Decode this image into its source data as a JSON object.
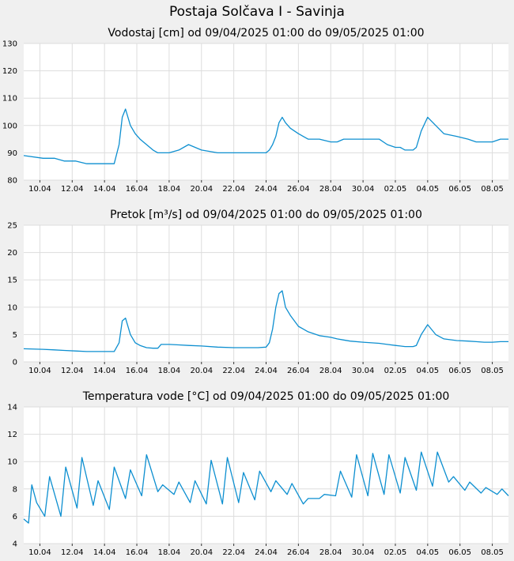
{
  "title": "Postaja Solčava I - Savinja",
  "colors": {
    "background": "#f0f0f0",
    "plot_area": "#ffffff",
    "grid": "#dddddd",
    "line": "#0d8fd0"
  },
  "chart_data": [
    {
      "type": "line",
      "title": "Vodostaj [cm] od 09/04/2025 01:00 do 09/05/2025 01:00",
      "xlabel": "",
      "ylabel": "",
      "ylim": [
        80,
        130
      ],
      "yticks": [
        "80",
        "90",
        "100",
        "110",
        "120",
        "130"
      ],
      "xtick_labels": [
        "10.04",
        "12.04",
        "14.04",
        "16.04",
        "18.04",
        "20.04",
        "22.04",
        "24.04",
        "26.04",
        "28.04",
        "30.04",
        "02.05",
        "04.05",
        "06.05",
        "08.05"
      ],
      "grid": true,
      "x": [
        0,
        1.2,
        1.9,
        2.5,
        3.2,
        3.9,
        4.6,
        5.2,
        5.6,
        5.9,
        6.1,
        6.3,
        6.6,
        6.9,
        7.2,
        7.6,
        8.0,
        8.3,
        8.5,
        8.6,
        9.0,
        9.6,
        10.2,
        11.0,
        12.0,
        13.0,
        14.0,
        14.5,
        15.0,
        15.2,
        15.4,
        15.6,
        15.8,
        16.0,
        16.2,
        16.5,
        17.0,
        17.6,
        18.3,
        19.0,
        19.4,
        19.8,
        20.2,
        21.0,
        22.0,
        22.5,
        23.0,
        23.3,
        23.6,
        23.9,
        24.1,
        24.3,
        24.6,
        25.0,
        25.5,
        26.0,
        26.8,
        27.5,
        28.0,
        28.5,
        29.0,
        29.5,
        30.0
      ],
      "series": [
        {
          "values": [
            89,
            88,
            88,
            87,
            87,
            86,
            86,
            86,
            86,
            93,
            103,
            106,
            100,
            97,
            95,
            93,
            91,
            90,
            90,
            90,
            90,
            91,
            93,
            91,
            90,
            90,
            90,
            90,
            90,
            91,
            93,
            96,
            101,
            103,
            101,
            99,
            97,
            95,
            95,
            94,
            94,
            95,
            95,
            95,
            95,
            93,
            92,
            92,
            91,
            91,
            91,
            92,
            98,
            103,
            100,
            97,
            96,
            95,
            94,
            94,
            94,
            95,
            95
          ]
        }
      ]
    },
    {
      "type": "line",
      "title": "Pretok [m³/s] od 09/04/2025 01:00 do 09/05/2025 01:00",
      "xlabel": "",
      "ylabel": "",
      "ylim": [
        0,
        25
      ],
      "yticks": [
        "0",
        "5",
        "10",
        "15",
        "20",
        "25"
      ],
      "xtick_labels": [
        "10.04",
        "12.04",
        "14.04",
        "16.04",
        "18.04",
        "20.04",
        "22.04",
        "24.04",
        "26.04",
        "28.04",
        "30.04",
        "02.05",
        "04.05",
        "06.05",
        "08.05"
      ],
      "grid": true,
      "x": [
        0,
        1.2,
        1.9,
        2.5,
        3.2,
        3.9,
        4.6,
        5.2,
        5.6,
        5.9,
        6.1,
        6.3,
        6.6,
        6.9,
        7.2,
        7.6,
        8.0,
        8.3,
        8.5,
        8.6,
        9.0,
        9.6,
        10.2,
        11.0,
        12.0,
        13.0,
        14.0,
        14.5,
        15.0,
        15.2,
        15.4,
        15.6,
        15.8,
        16.0,
        16.2,
        16.5,
        17.0,
        17.6,
        18.3,
        19.0,
        19.4,
        19.8,
        20.2,
        21.0,
        22.0,
        22.5,
        23.0,
        23.3,
        23.6,
        23.9,
        24.1,
        24.3,
        24.6,
        25.0,
        25.5,
        26.0,
        26.8,
        27.5,
        28.0,
        28.5,
        29.0,
        29.5,
        30.0
      ],
      "series": [
        {
          "values": [
            2.4,
            2.3,
            2.2,
            2.1,
            2.0,
            1.9,
            1.9,
            1.9,
            1.9,
            3.5,
            7.5,
            8.0,
            5.0,
            3.5,
            3.0,
            2.6,
            2.5,
            2.5,
            3.2,
            3.2,
            3.2,
            3.1,
            3.0,
            2.9,
            2.7,
            2.6,
            2.6,
            2.6,
            2.7,
            3.5,
            6.0,
            10.0,
            12.5,
            13.0,
            10.0,
            8.5,
            6.5,
            5.5,
            4.8,
            4.5,
            4.2,
            4.0,
            3.8,
            3.6,
            3.4,
            3.2,
            3.0,
            2.9,
            2.8,
            2.8,
            2.8,
            3.0,
            5.0,
            6.8,
            5.0,
            4.2,
            3.9,
            3.8,
            3.7,
            3.6,
            3.6,
            3.7,
            3.7
          ]
        }
      ]
    },
    {
      "type": "line",
      "title": "Temperatura vode [°C] od 09/04/2025 01:00 do 09/05/2025 01:00",
      "xlabel": "",
      "ylabel": "",
      "ylim": [
        4,
        14
      ],
      "yticks": [
        "4",
        "6",
        "8",
        "10",
        "12",
        "14"
      ],
      "xtick_labels": [
        "10.04",
        "12.04",
        "14.04",
        "16.04",
        "18.04",
        "20.04",
        "22.04",
        "24.04",
        "26.04",
        "28.04",
        "30.04",
        "02.05",
        "04.05",
        "06.05",
        "08.05"
      ],
      "grid": true,
      "x": [
        0,
        0.3,
        0.5,
        0.8,
        1.3,
        1.6,
        2.3,
        2.6,
        3.3,
        3.6,
        4.3,
        4.6,
        5.3,
        5.6,
        6.3,
        6.6,
        7.3,
        7.6,
        8.3,
        8.6,
        9.3,
        9.6,
        10.3,
        10.6,
        11.3,
        11.6,
        12.3,
        12.6,
        13.3,
        13.6,
        14.3,
        14.6,
        15.3,
        15.6,
        16.3,
        16.6,
        17.3,
        17.6,
        18.3,
        18.6,
        19.3,
        19.6,
        20.3,
        20.6,
        21.3,
        21.6,
        22.3,
        22.6,
        23.3,
        23.6,
        24.3,
        24.6,
        25.3,
        25.6,
        26.3,
        26.6,
        27.3,
        27.6,
        28.3,
        28.6,
        29.3,
        29.6,
        30.0
      ],
      "series": [
        {
          "values": [
            5.8,
            5.5,
            8.3,
            7.0,
            6.0,
            8.9,
            6.0,
            9.6,
            6.6,
            10.3,
            6.8,
            8.6,
            6.5,
            9.6,
            7.3,
            9.4,
            7.5,
            10.5,
            7.8,
            8.3,
            7.6,
            8.5,
            7.0,
            8.6,
            6.9,
            10.1,
            6.9,
            10.3,
            7.0,
            9.2,
            7.2,
            9.3,
            7.8,
            8.6,
            7.6,
            8.4,
            6.9,
            7.3,
            7.3,
            7.6,
            7.5,
            9.3,
            7.4,
            10.5,
            7.5,
            10.6,
            7.6,
            10.5,
            7.7,
            10.3,
            7.9,
            10.7,
            8.2,
            10.7,
            8.5,
            8.9,
            7.9,
            8.5,
            7.7,
            8.1,
            7.6,
            8.0,
            7.5
          ]
        }
      ]
    }
  ]
}
